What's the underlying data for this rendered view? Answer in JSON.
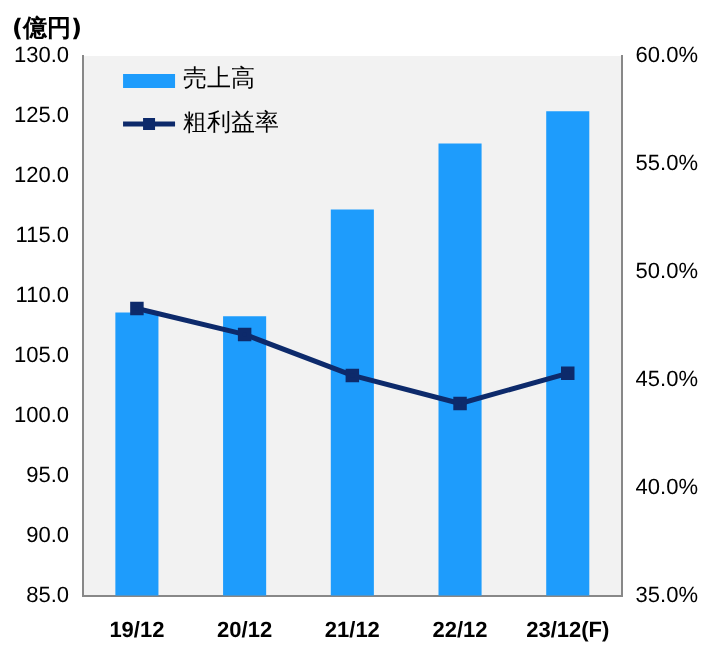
{
  "chart_data": {
    "type": "bar",
    "ylabel": "(億円)",
    "categories": [
      "19/12",
      "20/12",
      "21/12",
      "22/12",
      "23/12(F)"
    ],
    "series": [
      {
        "name": "売上高",
        "color": "#1e9cfc",
        "values": [
          108.6,
          108.3,
          117.2,
          122.7,
          125.4
        ]
      },
      {
        "name": "粗利益率",
        "type": "line",
        "axis": "y2",
        "color": "#0d2a6b",
        "marker": "square",
        "values": [
          48.3,
          47.1,
          45.2,
          43.9,
          45.3
        ]
      }
    ],
    "ylim": [
      85,
      130
    ],
    "yticks": [
      {
        "value": 85,
        "label": "85.0"
      },
      {
        "value": 90,
        "label": "90.0"
      },
      {
        "value": 95,
        "label": "95.0"
      },
      {
        "value": 100,
        "label": "100.0"
      },
      {
        "value": 105,
        "label": "105.0"
      },
      {
        "value": 110,
        "label": "110.0"
      },
      {
        "value": 115,
        "label": "115.0"
      },
      {
        "value": 120,
        "label": "120.0"
      },
      {
        "value": 125,
        "label": "125.0"
      },
      {
        "value": 130,
        "label": "130.0"
      }
    ],
    "y2lim": [
      35,
      60
    ],
    "y2ticks": [
      {
        "value": 35,
        "label": "35.0%"
      },
      {
        "value": 40,
        "label": "40.0%"
      },
      {
        "value": 45,
        "label": "45.0%"
      },
      {
        "value": 50,
        "label": "50.0%"
      },
      {
        "value": 55,
        "label": "55.0%"
      },
      {
        "value": 60,
        "label": "60.0%"
      }
    ],
    "grid": false,
    "legend": "top left"
  }
}
